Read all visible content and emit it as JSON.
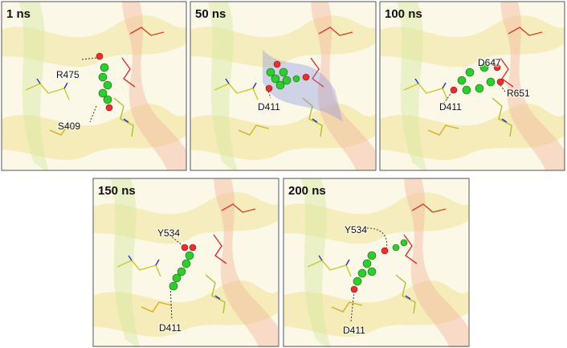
{
  "panels": [
    {
      "label": "1 ns",
      "residues": [
        "R475",
        "S409"
      ]
    },
    {
      "label": "50 ns",
      "residues": [
        "D411"
      ]
    },
    {
      "label": "100 ns",
      "residues": [
        "D647",
        "D411",
        "R651"
      ]
    },
    {
      "label": "150 ns",
      "residues": [
        "Y534",
        "D411"
      ]
    },
    {
      "label": "200 ns",
      "residues": [
        "Y534",
        "D411"
      ]
    }
  ]
}
